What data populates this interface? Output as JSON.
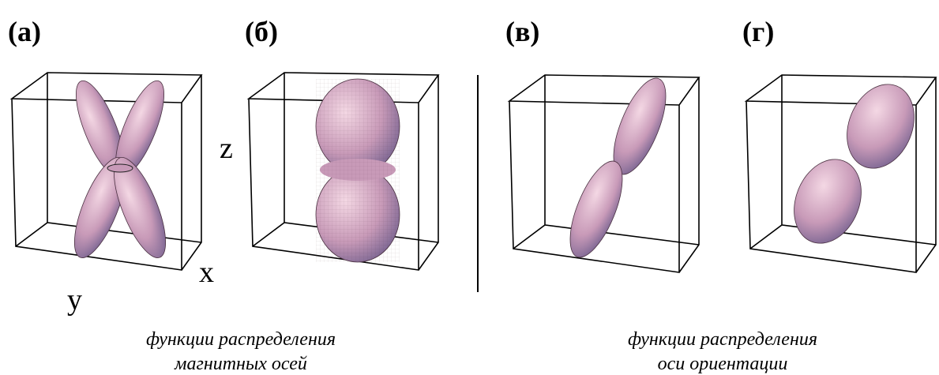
{
  "panels": [
    {
      "label": "(а)"
    },
    {
      "label": "(б)"
    },
    {
      "label": "(в)"
    },
    {
      "label": "(г)"
    }
  ],
  "axes": {
    "z": "z",
    "x": "x",
    "y": "y"
  },
  "captions": [
    {
      "lines": [
        "функции распределения",
        "магнитных осей"
      ]
    },
    {
      "lines": [
        "функции распределения",
        "оси ориентации"
      ]
    }
  ]
}
